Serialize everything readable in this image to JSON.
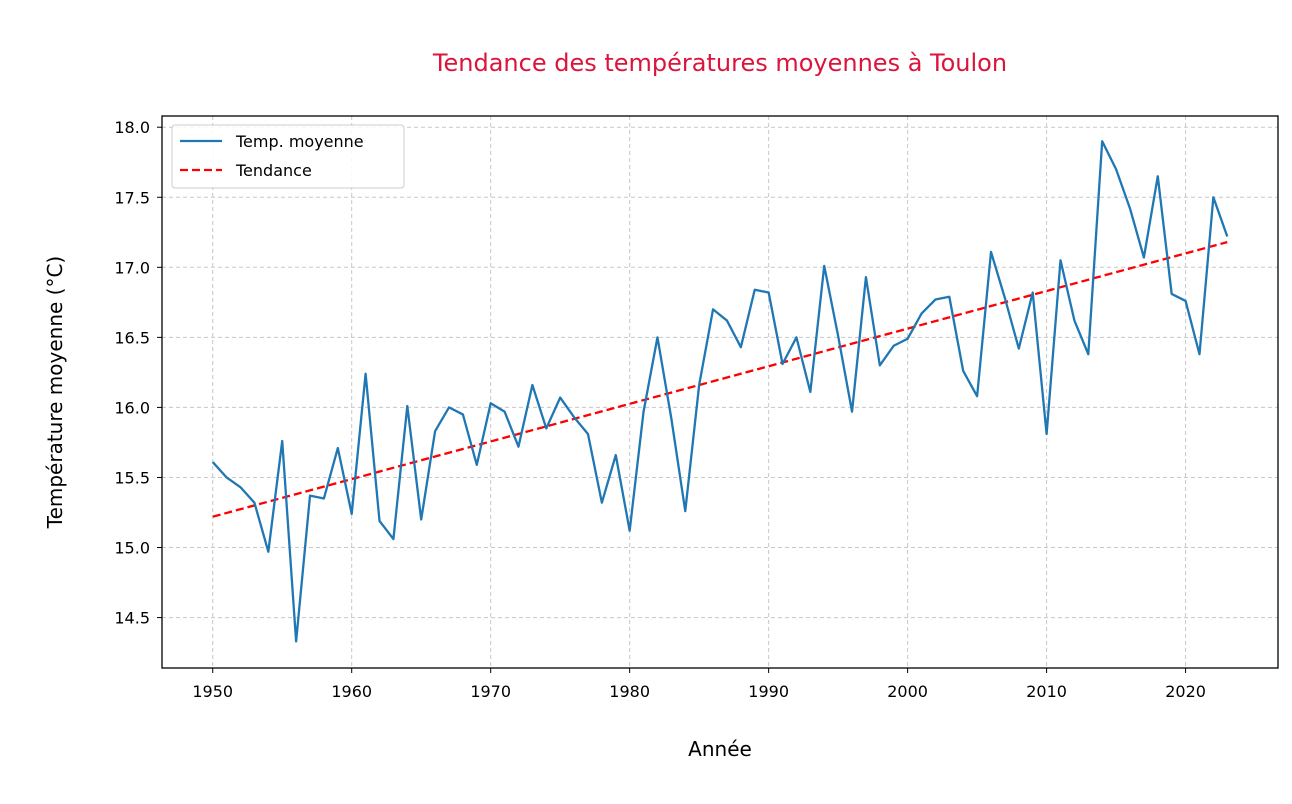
{
  "chart_data": {
    "type": "line",
    "title": "Tendance des températures moyennes à Toulon",
    "xlabel": "Année",
    "ylabel": "Température moyenne (°C)",
    "xlim": [
      1946.35,
      2026.65
    ],
    "ylim": [
      14.14,
      18.08
    ],
    "x_ticks": [
      1950,
      1960,
      1970,
      1980,
      1990,
      2000,
      2010,
      2020
    ],
    "x_tick_labels": [
      "1950",
      "1960",
      "1970",
      "1980",
      "1990",
      "2000",
      "2010",
      "2020"
    ],
    "y_ticks": [
      14.5,
      15.0,
      15.5,
      16.0,
      16.5,
      17.0,
      17.5,
      18.0
    ],
    "y_tick_labels": [
      "14.5",
      "15.0",
      "15.5",
      "16.0",
      "16.5",
      "17.0",
      "17.5",
      "18.0"
    ],
    "grid": true,
    "legend_position": "top-left",
    "colors": {
      "title": "#dc143c",
      "series": "#1f77b4",
      "trend": "#ff0000",
      "grid": "#c8c8c8"
    },
    "series": [
      {
        "name": "Temp. moyenne",
        "style": "solid",
        "x": [
          1950,
          1951,
          1952,
          1953,
          1954,
          1955,
          1956,
          1957,
          1958,
          1959,
          1960,
          1961,
          1962,
          1963,
          1964,
          1965,
          1966,
          1967,
          1968,
          1969,
          1970,
          1971,
          1972,
          1973,
          1974,
          1975,
          1976,
          1977,
          1978,
          1979,
          1980,
          1981,
          1982,
          1983,
          1984,
          1985,
          1986,
          1987,
          1988,
          1989,
          1990,
          1991,
          1992,
          1993,
          1994,
          1995,
          1996,
          1997,
          1998,
          1999,
          2000,
          2001,
          2002,
          2003,
          2004,
          2005,
          2006,
          2007,
          2008,
          2009,
          2010,
          2011,
          2012,
          2013,
          2014,
          2015,
          2016,
          2017,
          2018,
          2019,
          2020,
          2021,
          2022,
          2023
        ],
        "values": [
          15.61,
          15.5,
          15.43,
          15.32,
          14.97,
          15.76,
          14.33,
          15.37,
          15.35,
          15.71,
          15.24,
          16.24,
          15.19,
          15.06,
          16.01,
          15.2,
          15.83,
          16.0,
          15.95,
          15.59,
          16.03,
          15.97,
          15.72,
          16.16,
          15.85,
          16.07,
          15.93,
          15.81,
          15.32,
          15.66,
          15.12,
          15.97,
          16.5,
          15.92,
          15.26,
          16.16,
          16.7,
          16.62,
          16.43,
          16.84,
          16.82,
          16.31,
          16.5,
          16.11,
          17.01,
          16.51,
          15.97,
          16.93,
          16.3,
          16.44,
          16.49,
          16.67,
          16.77,
          16.79,
          16.26,
          16.08,
          17.11,
          16.78,
          16.42,
          16.82,
          15.81,
          17.05,
          16.62,
          16.38,
          17.9,
          17.7,
          17.42,
          17.07,
          17.65,
          16.81,
          16.76,
          16.38,
          17.5,
          17.22
        ]
      },
      {
        "name": "Tendance",
        "style": "dashed",
        "x": [
          1950,
          2023
        ],
        "values": [
          15.22,
          17.18
        ]
      }
    ]
  }
}
